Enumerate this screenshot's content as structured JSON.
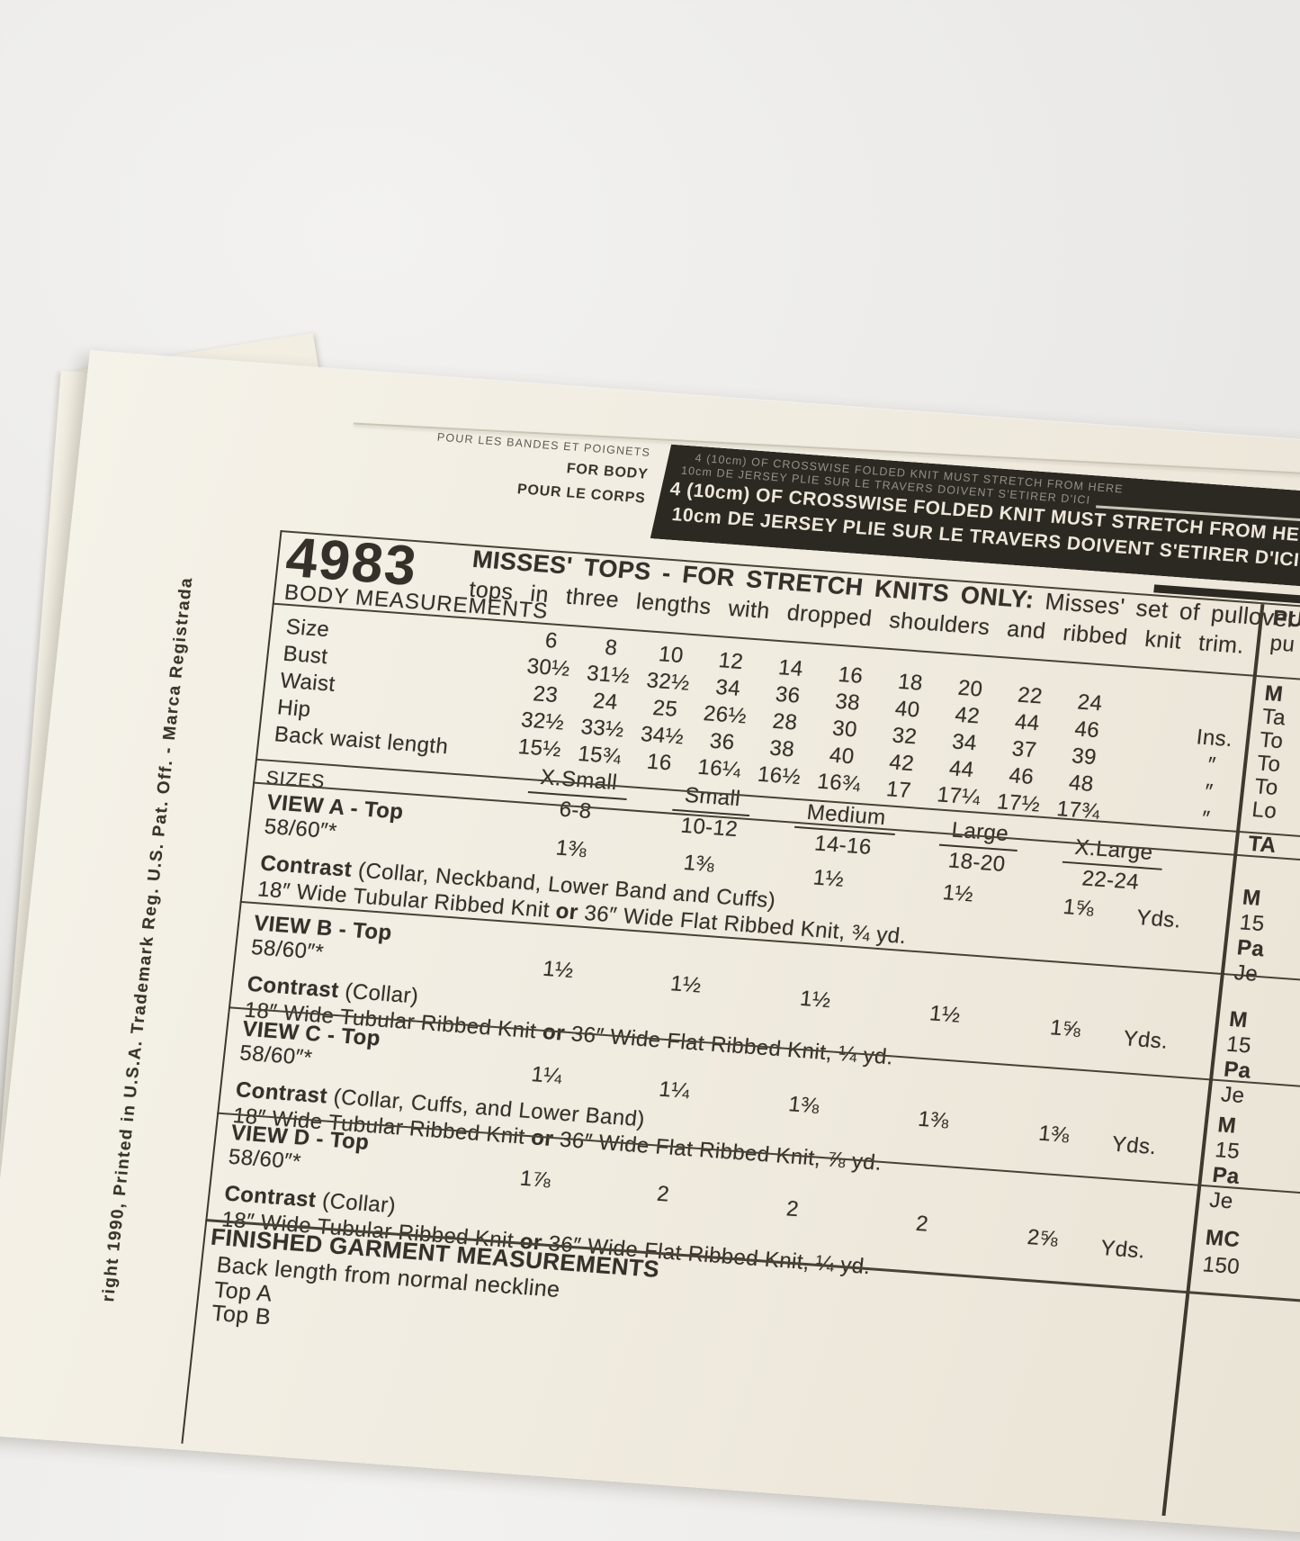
{
  "scene": {
    "background_color": "#ebeae8",
    "paper_color": "#f1ede2",
    "ink_color": "#35302a",
    "banner_bg": "#2c2822",
    "banner_text_color": "#e9e4d6"
  },
  "sheet": {
    "cut_marks": {
      "bands_label": "POUR LES BANDES ET POIGNETS",
      "body_label_en": "FOR BODY",
      "body_label_fr": "POUR LE CORPS"
    },
    "banner": {
      "echo_line_en": "4  (10cm) OF CROSSWISE FOLDED KNIT MUST STRETCH FROM HERE",
      "echo_line_fr": "10cm DE JERSEY PLIE SUR LE TRAVERS DOIVENT S'ETIRER D'ICI",
      "line_en": "4  (10cm) OF CROSSWISE FOLDED KNIT MUST STRETCH FROM HERE",
      "line_fr": "10cm DE JERSEY PLIE SUR LE TRAVERS DOIVENT S'ETIRER D'ICI"
    },
    "pattern_number": "4983",
    "description": {
      "bold": "MISSES' TOPS - FOR STRETCH KNITS ONLY:",
      "line1_rest": "Misses' set of pullover",
      "line2": "tops in three lengths with dropped shoulders and ribbed knit trim."
    },
    "body_measurements": {
      "heading": "BODY MEASUREMENTS",
      "rows": [
        {
          "label": "Size",
          "values": [
            "6",
            "8",
            "10",
            "12",
            "14",
            "16",
            "18",
            "20",
            "22",
            "24"
          ],
          "unit": ""
        },
        {
          "label": "Bust",
          "values": [
            "30½",
            "31½",
            "32½",
            "34",
            "36",
            "38",
            "40",
            "42",
            "44",
            "46"
          ],
          "unit": "Ins."
        },
        {
          "label": "Waist",
          "values": [
            "23",
            "24",
            "25",
            "26½",
            "28",
            "30",
            "32",
            "34",
            "37",
            "39"
          ],
          "unit": "″"
        },
        {
          "label": "Hip",
          "values": [
            "32½",
            "33½",
            "34½",
            "36",
            "38",
            "40",
            "42",
            "44",
            "46",
            "48"
          ],
          "unit": "″"
        },
        {
          "label": "Back waist length",
          "values": [
            "15½",
            "15¾",
            "16",
            "16¼",
            "16½",
            "16¾",
            "17",
            "17¼",
            "17½",
            "17¾"
          ],
          "unit": "″"
        }
      ]
    },
    "sizes": {
      "heading": "SIZES",
      "groups": [
        {
          "name": "X.Small",
          "range": "6-8"
        },
        {
          "name": "Small",
          "range": "10-12"
        },
        {
          "name": "Medium",
          "range": "14-16"
        },
        {
          "name": "Large",
          "range": "18-20"
        },
        {
          "name": "X.Large",
          "range": "22-24"
        }
      ]
    },
    "views": [
      {
        "title": "VIEW A - Top",
        "fabric_width": "58/60″*",
        "yardages": [
          "1⅜",
          "1⅜",
          "1½",
          "1½",
          "1⅝"
        ],
        "unit": "Yds.",
        "contrast_label": "Contrast",
        "contrast_detail": "(Collar, Neckband, Lower Band and Cuffs)",
        "ribbing_pre": "18″ Wide Tubular Ribbed Knit",
        "ribbing_or": "or",
        "ribbing_post": "36″ Wide Flat Ribbed Knit, ¾ yd."
      },
      {
        "title": "VIEW B - Top",
        "fabric_width": "58/60″*",
        "yardages": [
          "1½",
          "1½",
          "1½",
          "1½",
          "1⅝"
        ],
        "unit": "Yds.",
        "contrast_label": "Contrast",
        "contrast_detail": "(Collar)",
        "ribbing_pre": "18″ Wide Tubular Ribbed Knit",
        "ribbing_or": "or",
        "ribbing_post": "36″ Wide Flat Ribbed Knit, ¼ yd."
      },
      {
        "title": "VIEW C - Top",
        "fabric_width": "58/60″*",
        "yardages": [
          "1¼",
          "1¼",
          "1⅜",
          "1⅜",
          "1⅜"
        ],
        "unit": "Yds.",
        "contrast_label": "Contrast",
        "contrast_detail": "(Collar, Cuffs, and Lower Band)",
        "ribbing_pre": "18″ Wide Tubular Ribbed Knit",
        "ribbing_or": "or",
        "ribbing_post": "36″ Wide Flat Ribbed Knit, ⅞ yd."
      },
      {
        "title": "VIEW D - Top",
        "fabric_width": "58/60″*",
        "yardages": [
          "1⅞",
          "2",
          "2",
          "2",
          "2⅝"
        ],
        "unit": "Yds.",
        "contrast_label": "Contrast",
        "contrast_detail": "(Collar)",
        "ribbing_pre": "18″ Wide Tubular Ribbed Knit",
        "ribbing_or": "or",
        "ribbing_post": "36″ Wide Flat Ribbed Knit, ¼ yd."
      }
    ],
    "finished_garment": {
      "heading": "FINISHED GARMENT MEASUREMENTS",
      "line1": "Back length from normal neckline",
      "item1": "Top A",
      "item2": "Top B"
    },
    "copyright_vertical": "right 1990, Printed in U.S.A. Trademark Reg. U.S. Pat. Off. - Marca Registrada",
    "right_column": {
      "header": [
        {
          "t": "PU",
          "b": true
        },
        {
          "t": "pu",
          "b": false
        }
      ],
      "measurements": [
        {
          "t": "M",
          "b": true
        },
        {
          "t": "Ta",
          "b": false
        },
        {
          "t": "To",
          "b": false
        },
        {
          "t": "To",
          "b": false
        },
        {
          "t": "To",
          "b": false
        },
        {
          "t": "Lo",
          "b": false
        }
      ],
      "sizes_fragment": "TA",
      "views": [
        [
          {
            "t": "M",
            "b": true
          },
          {
            "t": "15",
            "b": false
          },
          {
            "t": "Pa",
            "b": true
          },
          {
            "t": "Je",
            "b": false
          }
        ],
        [
          {
            "t": "M",
            "b": true
          },
          {
            "t": "15",
            "b": false
          },
          {
            "t": "Pa",
            "b": true
          },
          {
            "t": "Je",
            "b": false
          }
        ],
        [
          {
            "t": "M",
            "b": true
          },
          {
            "t": "15",
            "b": false
          },
          {
            "t": "Pa",
            "b": true
          },
          {
            "t": "Je",
            "b": false
          }
        ],
        [
          {
            "t": "MC",
            "b": true
          },
          {
            "t": "150",
            "b": false
          }
        ]
      ]
    }
  }
}
